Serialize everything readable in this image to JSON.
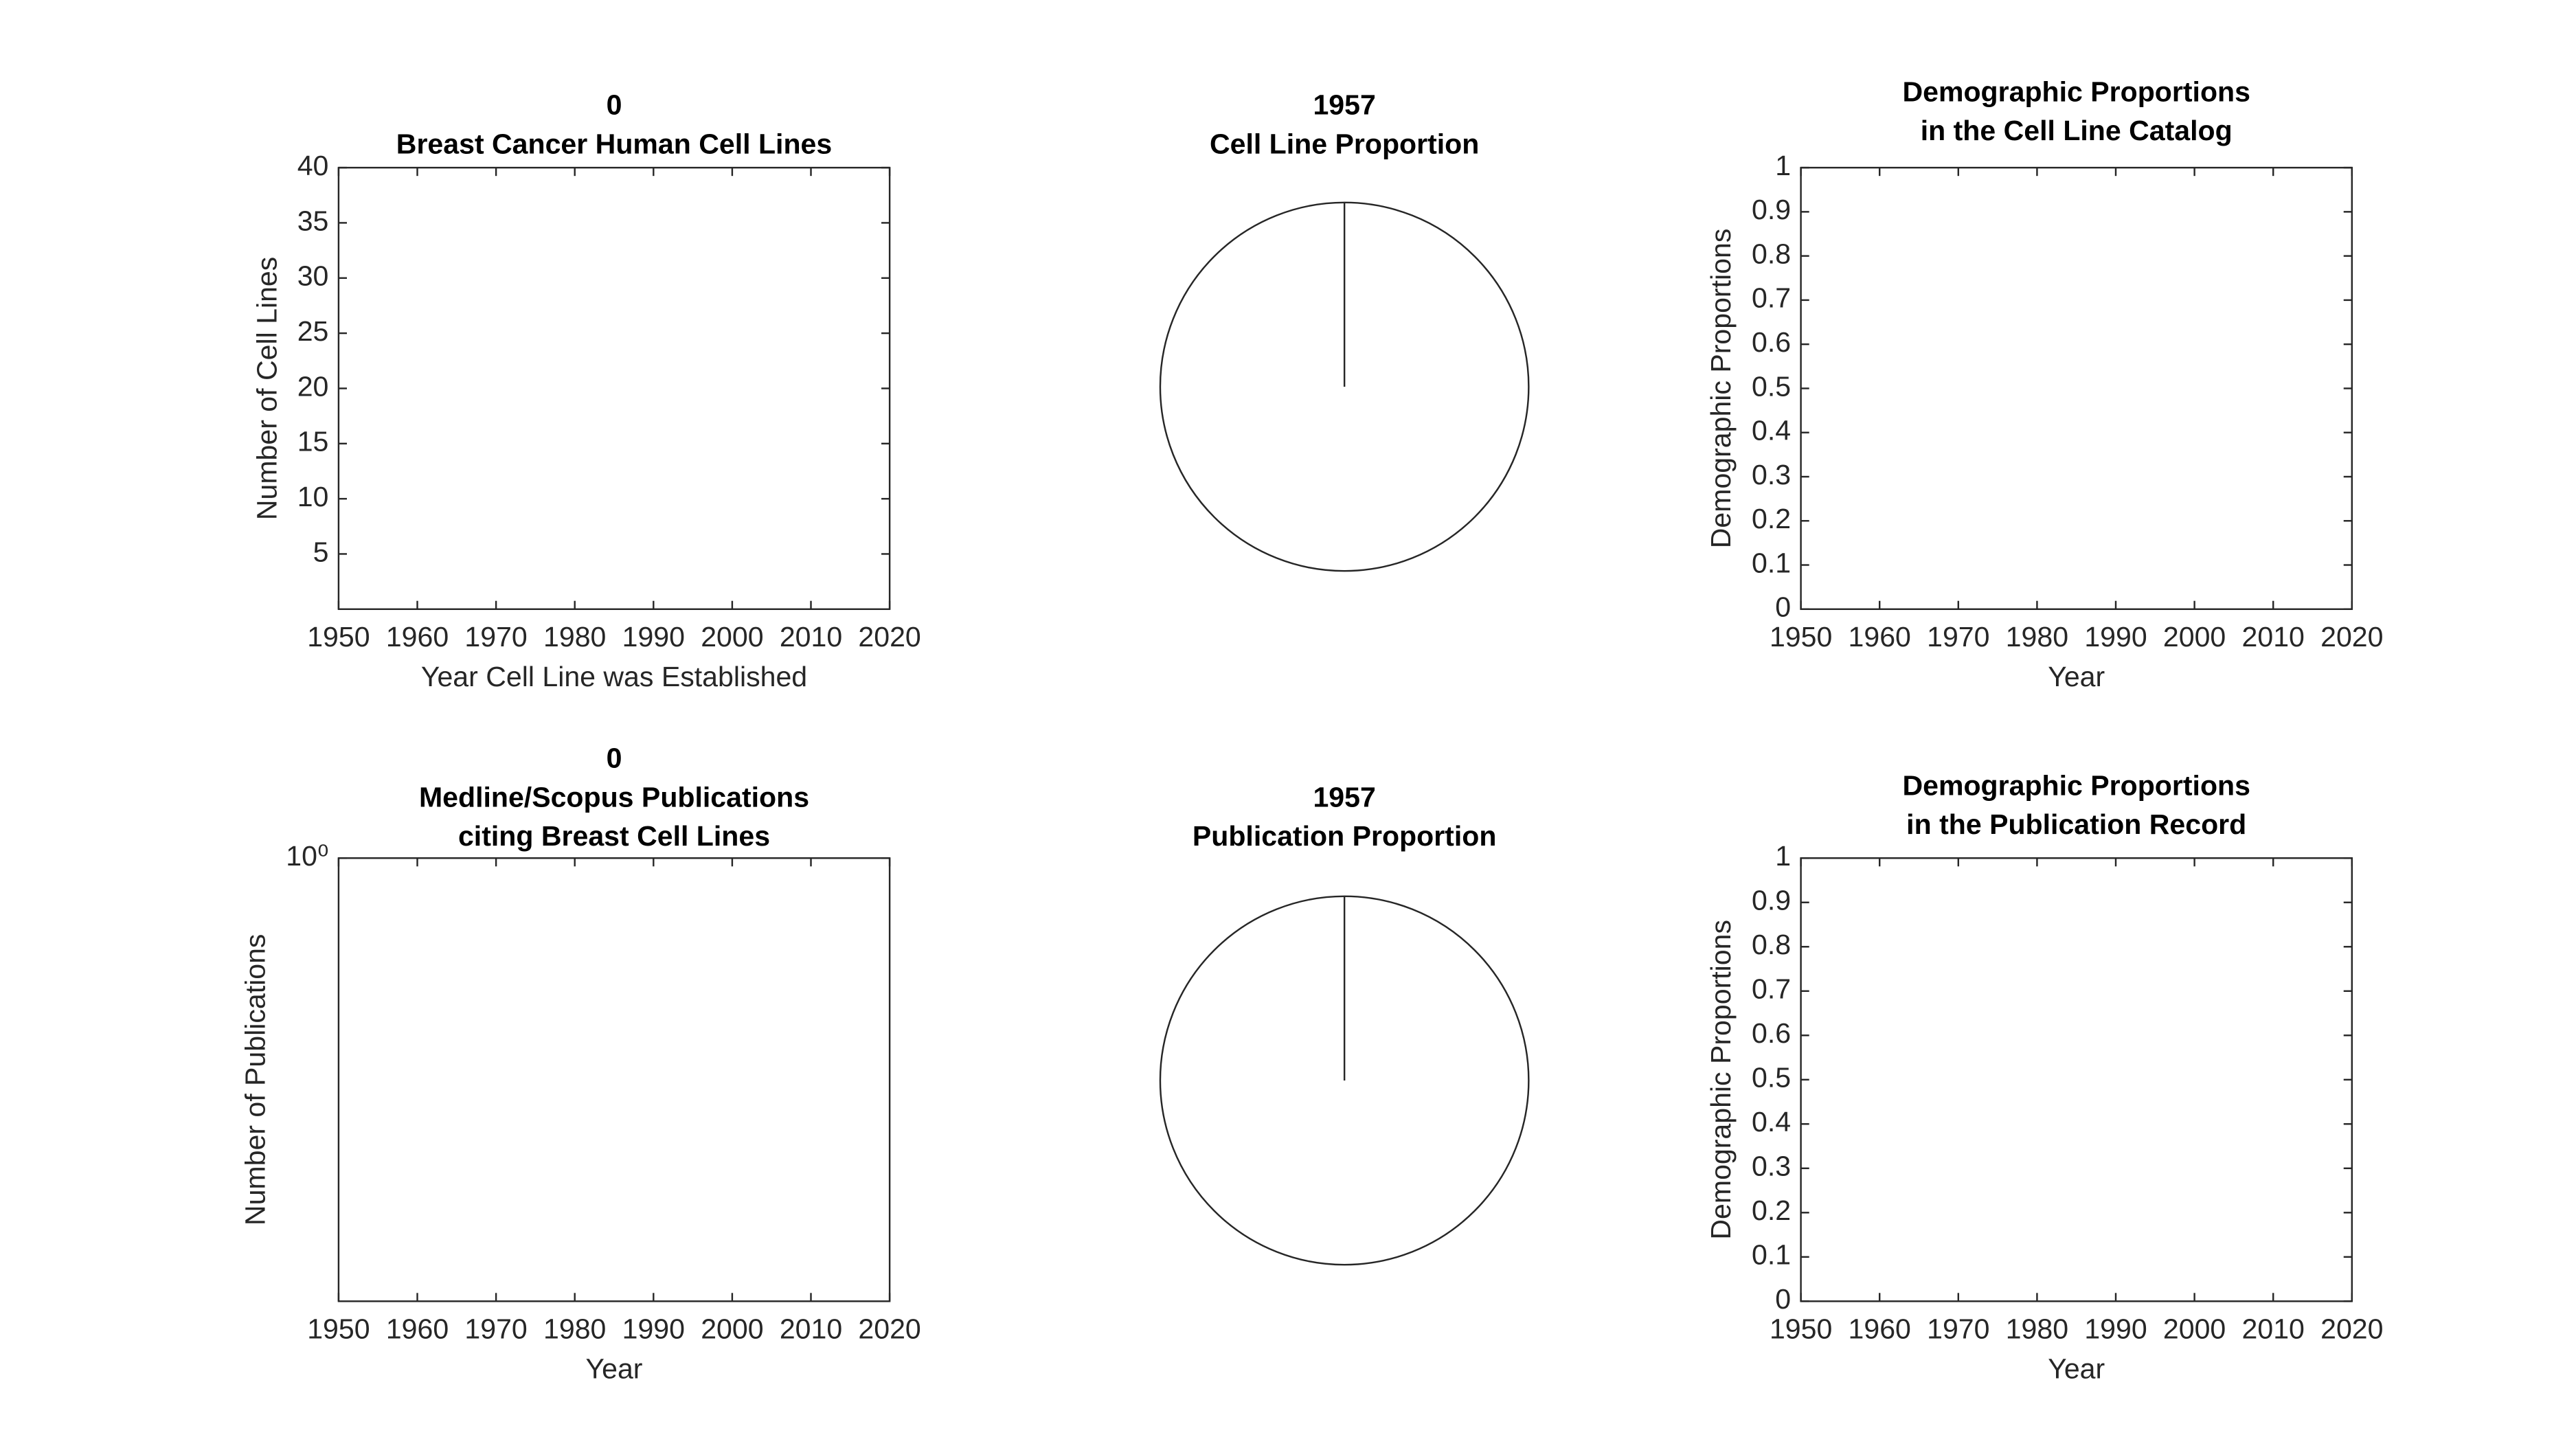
{
  "chart_data": [
    {
      "type": "bar",
      "title": [
        "0",
        "Breast Cancer Human Cell Lines"
      ],
      "xlabel": "Year Cell Line was Established",
      "ylabel": "Number of Cell Lines",
      "xlim": [
        1950,
        2020
      ],
      "xticks": [
        1950,
        1960,
        1970,
        1980,
        1990,
        2000,
        2010,
        2020
      ],
      "ylim": [
        0,
        40
      ],
      "yticks": [
        5,
        10,
        15,
        20,
        25,
        30,
        35,
        40
      ]
    },
    {
      "type": "pie",
      "title": [
        "1957",
        "Cell Line Proportion"
      ]
    },
    {
      "type": "line",
      "title": [
        "Demographic Proportions",
        "in the Cell Line Catalog"
      ],
      "xlabel": "Year",
      "ylabel": "Demographic Proportions",
      "xlim": [
        1950,
        2020
      ],
      "xticks": [
        1950,
        1960,
        1970,
        1980,
        1990,
        2000,
        2010,
        2020
      ],
      "ylim": [
        0,
        1
      ],
      "yticks": [
        0,
        0.1,
        0.2,
        0.3,
        0.4,
        0.5,
        0.6,
        0.7,
        0.8,
        0.9,
        1
      ]
    },
    {
      "type": "line",
      "title": [
        "0",
        "Medline/Scopus Publications",
        "citing Breast Cell Lines"
      ],
      "xlabel": "Year",
      "ylabel": "Number of Publications",
      "xlim": [
        1950,
        2020
      ],
      "xticks": [
        1950,
        1960,
        1970,
        1980,
        1990,
        2000,
        2010,
        2020
      ],
      "ylim": [
        0.1,
        1
      ],
      "yticks": [
        {
          "value": 1,
          "label": "10⁰"
        }
      ],
      "log_y": true
    },
    {
      "type": "pie",
      "title": [
        "1957",
        "Publication Proportion"
      ]
    },
    {
      "type": "line",
      "title": [
        "Demographic Proportions",
        "in the Publication Record"
      ],
      "xlabel": "Year",
      "ylabel": "Demographic Proportions",
      "xlim": [
        1950,
        2020
      ],
      "xticks": [
        1950,
        1960,
        1970,
        1980,
        1990,
        2000,
        2010,
        2020
      ],
      "ylim": [
        0,
        1
      ],
      "yticks": [
        0,
        0.1,
        0.2,
        0.3,
        0.4,
        0.5,
        0.6,
        0.7,
        0.8,
        0.9,
        1
      ]
    }
  ]
}
